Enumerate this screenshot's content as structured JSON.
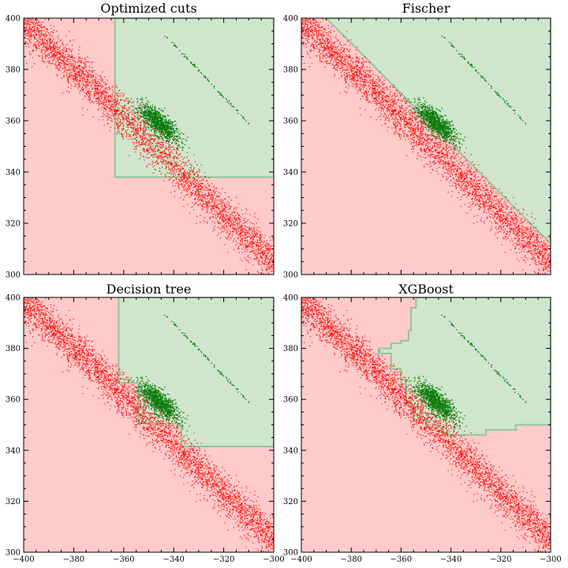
{
  "colors": {
    "accept_region": "#cfe5cc",
    "reject_region": "#fecaca",
    "boundary": "#8fc79a",
    "background_points": "#ff0000",
    "signal_points": "#0b7a0b"
  },
  "chart_data": [
    {
      "type": "scatter",
      "title": "Optimized cuts",
      "xlim": [
        -400,
        -300
      ],
      "ylim": [
        300,
        400
      ],
      "xticks": [
        -400,
        -380,
        -360,
        -340,
        -320,
        -300
      ],
      "yticks": [
        300,
        320,
        340,
        360,
        380,
        400
      ],
      "xticklabels_shown": false,
      "yticklabels_shown": true,
      "grid": false,
      "accept_region": [
        [
          -363.5,
          400
        ],
        [
          -363.5,
          338
        ],
        [
          -300,
          338
        ],
        [
          -300,
          400
        ]
      ],
      "series": [
        {
          "role": "background",
          "distribution": "diagonal band",
          "points": [
            [
              -400,
              398
            ],
            [
              -380,
              380
            ],
            [
              -360,
              361
            ],
            [
              -340,
              343
            ],
            [
              -320,
              323
            ],
            [
              -300,
              305
            ]
          ]
        },
        {
          "role": "signal",
          "distribution": "blob",
          "center": [
            -346,
            359
          ],
          "points": [
            [
              -352,
              362
            ],
            [
              -346,
              359
            ],
            [
              -340,
              356
            ],
            [
              -335,
              352
            ]
          ]
        },
        {
          "role": "signal",
          "distribution": "thin line",
          "points": [
            [
              -344,
              394
            ],
            [
              -310,
              359
            ]
          ]
        }
      ]
    },
    {
      "type": "scatter",
      "title": "Fischer",
      "xlim": [
        -400,
        -300
      ],
      "ylim": [
        300,
        400
      ],
      "xticks": [
        -400,
        -380,
        -360,
        -340,
        -320,
        -300
      ],
      "yticks": [
        300,
        320,
        340,
        360,
        380,
        400
      ],
      "xticklabels_shown": false,
      "yticklabels_shown": true,
      "grid": false,
      "accept_region": [
        [
          -390,
          400
        ],
        [
          -300,
          312
        ],
        [
          -300,
          400
        ]
      ],
      "series": [
        {
          "role": "background",
          "distribution": "diagonal band",
          "points": [
            [
              -400,
              398
            ],
            [
              -380,
              380
            ],
            [
              -360,
              361
            ],
            [
              -340,
              343
            ],
            [
              -320,
              323
            ],
            [
              -300,
              305
            ]
          ]
        },
        {
          "role": "signal",
          "distribution": "blob",
          "center": [
            -346,
            359
          ],
          "points": [
            [
              -352,
              362
            ],
            [
              -346,
              359
            ],
            [
              -340,
              356
            ],
            [
              -335,
              352
            ]
          ]
        },
        {
          "role": "signal",
          "distribution": "thin line",
          "points": [
            [
              -344,
              394
            ],
            [
              -310,
              359
            ]
          ]
        }
      ]
    },
    {
      "type": "scatter",
      "title": "Decision tree",
      "xlim": [
        -400,
        -300
      ],
      "ylim": [
        300,
        400
      ],
      "xticks": [
        -400,
        -380,
        -360,
        -340,
        -320,
        -300
      ],
      "yticks": [
        300,
        320,
        340,
        360,
        380,
        400
      ],
      "xticklabels_shown": true,
      "yticklabels_shown": true,
      "grid": false,
      "accept_region": [
        [
          -362,
          400
        ],
        [
          -362,
          366.5
        ],
        [
          -354,
          366.5
        ],
        [
          -354,
          350.5
        ],
        [
          -337,
          350.5
        ],
        [
          -337,
          341.5
        ],
        [
          -300,
          341.5
        ],
        [
          -300,
          400
        ]
      ],
      "series": [
        {
          "role": "background",
          "distribution": "diagonal band",
          "points": [
            [
              -400,
              398
            ],
            [
              -380,
              380
            ],
            [
              -360,
              361
            ],
            [
              -340,
              343
            ],
            [
              -320,
              323
            ],
            [
              -300,
              305
            ]
          ]
        },
        {
          "role": "signal",
          "distribution": "blob",
          "center": [
            -346,
            359
          ],
          "points": [
            [
              -352,
              362
            ],
            [
              -346,
              359
            ],
            [
              -340,
              356
            ],
            [
              -335,
              352
            ]
          ]
        },
        {
          "role": "signal",
          "distribution": "thin line",
          "points": [
            [
              -344,
              394
            ],
            [
              -310,
              359
            ]
          ]
        }
      ]
    },
    {
      "type": "scatter",
      "title": "XGBoost",
      "xlim": [
        -400,
        -300
      ],
      "ylim": [
        300,
        400
      ],
      "xticks": [
        -400,
        -380,
        -360,
        -340,
        -320,
        -300
      ],
      "yticks": [
        300,
        320,
        340,
        360,
        380,
        400
      ],
      "xticklabels_shown": true,
      "yticklabels_shown": true,
      "grid": false,
      "accept_region": [
        [
          -354,
          400
        ],
        [
          -354,
          396
        ],
        [
          -356,
          396
        ],
        [
          -356,
          387
        ],
        [
          -357,
          387
        ],
        [
          -357,
          383
        ],
        [
          -360,
          383
        ],
        [
          -360,
          382
        ],
        [
          -364,
          382
        ],
        [
          -364,
          380
        ],
        [
          -369,
          380
        ],
        [
          -369,
          378
        ],
        [
          -364,
          378
        ],
        [
          -364,
          372
        ],
        [
          -360,
          372
        ],
        [
          -360,
          366
        ],
        [
          -358,
          366
        ],
        [
          -358,
          358
        ],
        [
          -355,
          358
        ],
        [
          -355,
          352
        ],
        [
          -350,
          352
        ],
        [
          -350,
          349
        ],
        [
          -343,
          349
        ],
        [
          -343,
          346
        ],
        [
          -326,
          346
        ],
        [
          -326,
          348
        ],
        [
          -314,
          348
        ],
        [
          -314,
          350
        ],
        [
          -300,
          350
        ],
        [
          -300,
          400
        ]
      ],
      "series": [
        {
          "role": "background",
          "distribution": "diagonal band",
          "points": [
            [
              -400,
              398
            ],
            [
              -380,
              380
            ],
            [
              -360,
              361
            ],
            [
              -340,
              343
            ],
            [
              -320,
              323
            ],
            [
              -300,
              305
            ]
          ]
        },
        {
          "role": "signal",
          "distribution": "blob",
          "center": [
            -346,
            359
          ],
          "points": [
            [
              -352,
              362
            ],
            [
              -346,
              359
            ],
            [
              -340,
              356
            ],
            [
              -335,
              352
            ]
          ]
        },
        {
          "role": "signal",
          "distribution": "thin line",
          "points": [
            [
              -344,
              394
            ],
            [
              -310,
              359
            ]
          ]
        }
      ]
    }
  ]
}
